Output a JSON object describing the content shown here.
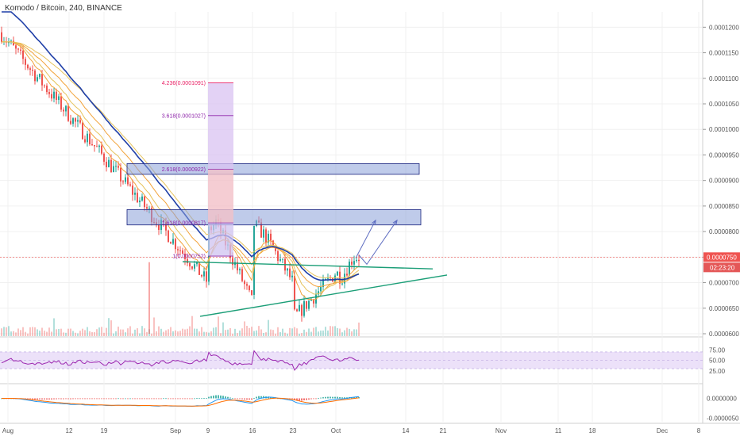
{
  "title": "Komodo / Bitcoin, 240, BINANCE",
  "colors": {
    "up": "#26a69a",
    "down": "#ef5350",
    "ema": "#1f3fa8",
    "ribbon": "#f2a33a",
    "ribbon2": "#e6c35c",
    "rsi": "#9c27b0",
    "rsi_band": "#e7d9f7",
    "box_fill": "#8aa0d8",
    "box_stroke": "#1a237e",
    "trend": "#1b9e77",
    "arrow": "#5c6bc0",
    "fib_pink": "#e91e63",
    "fib_violet": "#8e24aa",
    "price_tag": "#ef5350",
    "grid": "#f0f0f0"
  },
  "chart_data": [
    {
      "type": "candlestick",
      "title": "Komodo / Bitcoin, 240, BINANCE",
      "ylim": [
        6e-05,
        0.000123
      ],
      "y_ticks": [
        "0.0001200",
        "0.0001150",
        "0.0001100",
        "0.0001050",
        "0.0001000",
        "0.0000950",
        "0.0000900",
        "0.0000850",
        "0.0000800",
        "0.0000750",
        "0.0000700",
        "0.0000650",
        "0.0000600"
      ],
      "x_ticks": [
        "Aug",
        "12",
        "19",
        "Sep",
        "9",
        "16",
        "23",
        "Oct",
        "14",
        "21",
        "Nov",
        "11",
        "18",
        "Dec",
        "8"
      ],
      "last_price": "0.0000750",
      "countdown": "02:23:20",
      "fib_levels": [
        {
          "label": "4.236(0.0001091)",
          "value": 0.0001091
        },
        {
          "label": "3.618(0.0001027)",
          "value": 0.0001027
        },
        {
          "label": "2.618(0.0000922)",
          "value": 9.22e-05
        },
        {
          "label": "1.618(0.0000817)",
          "value": 8.17e-05
        },
        {
          "label": "1(0.0000752)",
          "value": 7.52e-05
        }
      ],
      "target_zones": [
        {
          "from": 9.12e-05,
          "to": 9.33e-05
        },
        {
          "from": 8.13e-05,
          "to": 8.43e-05
        }
      ],
      "price_path": [
        [
          "Aug",
          0.000113
        ],
        [
          "Aug",
          0.000108
        ],
        [
          "Aug",
          0.000102
        ],
        [
          "Aug",
          9.6e-05
        ],
        [
          "Aug",
          9e-05
        ],
        [
          "12",
          8.5e-05
        ],
        [
          "12",
          7.6e-05
        ],
        [
          "12",
          7e-05
        ],
        [
          "12",
          7.2e-05
        ],
        [
          "12",
          8.2e-05
        ],
        [
          "19",
          7.9e-05
        ],
        [
          "19",
          8e-05
        ],
        [
          "19",
          7.45e-05
        ],
        [
          "19",
          7.8e-05
        ],
        [
          "19",
          8.4e-05
        ],
        [
          "19",
          8.45e-05
        ],
        [
          "19",
          7.9e-05
        ],
        [
          "Sep",
          7.5e-05
        ],
        [
          "Sep",
          7e-05
        ],
        [
          "Sep",
          6.5e-05
        ],
        [
          "Sep",
          6.35e-05
        ],
        [
          "9",
          7e-05
        ],
        [
          "9",
          7.4e-05
        ],
        [
          "9",
          7.2e-05
        ],
        [
          "16",
          6.6e-05
        ],
        [
          "16",
          6.8e-05
        ],
        [
          "16",
          6.6e-05
        ],
        [
          "16",
          7.4e-05
        ],
        [
          "23",
          7e-05
        ],
        [
          "23",
          7e-05
        ],
        [
          "23",
          6.8e-05
        ],
        [
          "Oct",
          7.2e-05
        ],
        [
          "Oct",
          7.1e-05
        ],
        [
          "Oct",
          7.3e-05
        ],
        [
          "Oct",
          7.5e-05
        ]
      ]
    },
    {
      "type": "line",
      "title": "",
      "ylim": [
        0,
        100
      ],
      "y_ticks": [
        "75.00",
        "50.00",
        "25.00"
      ],
      "band": [
        30,
        70
      ]
    },
    {
      "type": "bar",
      "title": "",
      "y_ticks": [
        "0.0000000",
        "-0.0000050"
      ]
    }
  ]
}
